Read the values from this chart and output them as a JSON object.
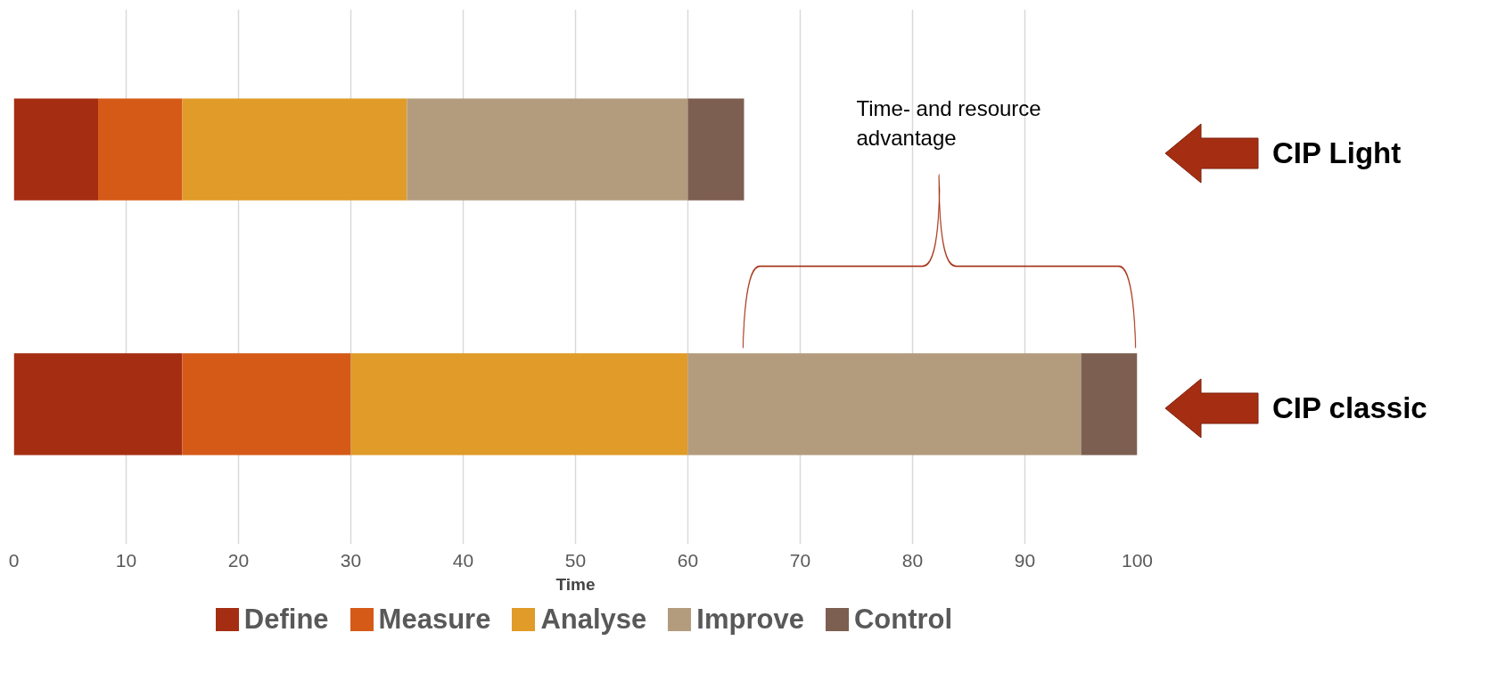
{
  "chart_data": {
    "type": "bar",
    "orientation": "horizontal",
    "stacked": true,
    "categories": [
      "CIP Light",
      "CIP classic"
    ],
    "series": [
      {
        "name": "Define",
        "color": "#a52e12",
        "values": [
          7.5,
          15
        ]
      },
      {
        "name": "Measure",
        "color": "#d55a18",
        "values": [
          7.5,
          15
        ]
      },
      {
        "name": "Analyse",
        "color": "#e09b28",
        "values": [
          20,
          30
        ]
      },
      {
        "name": "Improve",
        "color": "#b39c7e",
        "values": [
          25,
          35
        ]
      },
      {
        "name": "Control",
        "color": "#7d5f51",
        "values": [
          5,
          5
        ]
      }
    ],
    "xlabel": "Time",
    "xlim": [
      0,
      100
    ],
    "xticks": [
      0,
      10,
      20,
      30,
      40,
      50,
      60,
      70,
      80,
      90,
      100
    ],
    "grid": "x",
    "legend": "bottom",
    "annotations": [
      "Time- and resource advantage"
    ]
  }
}
